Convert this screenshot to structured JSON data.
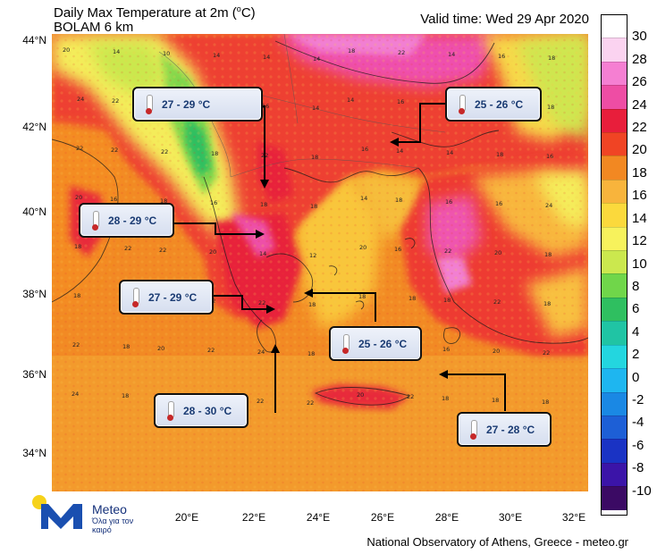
{
  "title": {
    "line1_prefix": "Daily Max Temperature at 2m (",
    "unit_sup": "o",
    "line1_suffix": "C)",
    "line2": "BOLAM 6 km"
  },
  "valid_time": "Valid time: Wed 29 Apr 2020",
  "axes": {
    "lat_labels": [
      "44°N",
      "42°N",
      "40°N",
      "38°N",
      "36°N",
      "34°N"
    ],
    "lon_labels": [
      "20°E",
      "22°E",
      "24°E",
      "26°E",
      "28°E",
      "30°E",
      "32°E"
    ]
  },
  "colorbar": {
    "labels": [
      "30",
      "28",
      "26",
      "24",
      "22",
      "20",
      "18",
      "16",
      "14",
      "12",
      "10",
      "8",
      "6",
      "4",
      "2",
      "0",
      "-2",
      "-4",
      "-6",
      "-8",
      "-10"
    ],
    "colors": [
      "#ffffff",
      "#fbd3f0",
      "#f57fd2",
      "#ee4da4",
      "#e81e3b",
      "#f04424",
      "#f28822",
      "#f8b43c",
      "#fbd93c",
      "#f7f25c",
      "#cbe84e",
      "#70d64a",
      "#2fbf60",
      "#20c4a4",
      "#23d6df",
      "#1eb6f0",
      "#1a88e4",
      "#1d5fd6",
      "#1a33c4",
      "#3b14a8",
      "#3b0a64"
    ]
  },
  "callouts": [
    {
      "text": "27 - 29 °C"
    },
    {
      "text": "25 - 26 °C"
    },
    {
      "text": "28 - 29 °C"
    },
    {
      "text": "27 - 29 °C"
    },
    {
      "text": "25 - 26 °C"
    },
    {
      "text": "28 - 30 °C"
    },
    {
      "text": "27 - 28 °C"
    }
  ],
  "map_numbers": [
    "20",
    "14",
    "10",
    "14",
    "14",
    "14",
    "18",
    "22",
    "14",
    "16",
    "18",
    "24",
    "22",
    "18",
    "12",
    "16",
    "14",
    "14",
    "16",
    "22",
    "20",
    "18",
    "22",
    "22",
    "22",
    "18",
    "22",
    "18",
    "16",
    "14",
    "14",
    "18",
    "16",
    "20",
    "16",
    "18",
    "16",
    "18",
    "18",
    "14",
    "18",
    "16",
    "16",
    "24",
    "18",
    "22",
    "22",
    "20",
    "14",
    "12",
    "20",
    "16",
    "22",
    "20",
    "18",
    "18",
    "20",
    "20",
    "22",
    "22",
    "18",
    "18",
    "18",
    "18",
    "22",
    "18",
    "22",
    "18",
    "20",
    "22",
    "24",
    "18",
    "20",
    "20",
    "16",
    "20",
    "22",
    "24",
    "18",
    "22",
    "18",
    "22",
    "22",
    "20",
    "22",
    "18",
    "18",
    "18"
  ],
  "logo": {
    "name": "Meteo",
    "tagline": "Όλα για τον καιρό"
  },
  "credit": "National Observatory of Athens, Greece - meteo.gr"
}
